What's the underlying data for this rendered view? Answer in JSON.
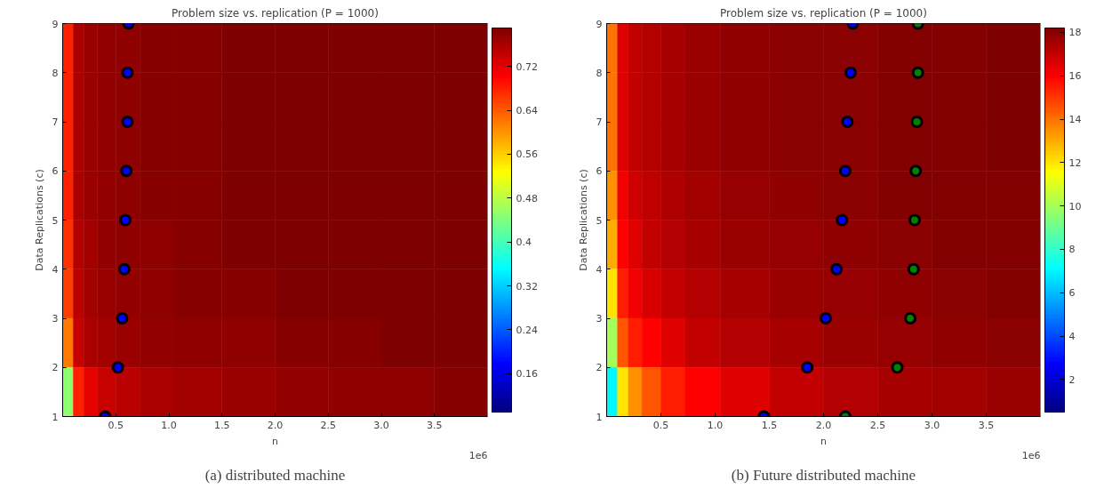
{
  "chart_data": [
    {
      "type": "heatmap",
      "title": "Problem size vs. replication (P = 1000)",
      "xlabel": "n",
      "ylabel": "Data Replications (c)",
      "x": [
        0.05,
        0.15,
        0.25,
        0.4,
        0.6,
        0.85,
        1.25,
        1.75,
        2.25,
        2.75,
        3.25,
        3.75
      ],
      "cells": [
        [
          0.68,
          0.76,
          0.77,
          0.775,
          0.78,
          0.785,
          0.785,
          0.79,
          0.79,
          0.79,
          0.79,
          0.79
        ],
        [
          0.68,
          0.76,
          0.77,
          0.775,
          0.78,
          0.785,
          0.785,
          0.79,
          0.79,
          0.79,
          0.79,
          0.79
        ],
        [
          0.68,
          0.76,
          0.77,
          0.775,
          0.78,
          0.785,
          0.785,
          0.79,
          0.79,
          0.79,
          0.79,
          0.79
        ],
        [
          0.68,
          0.76,
          0.77,
          0.775,
          0.78,
          0.785,
          0.785,
          0.79,
          0.79,
          0.79,
          0.79,
          0.79
        ],
        [
          0.67,
          0.755,
          0.765,
          0.775,
          0.78,
          0.78,
          0.785,
          0.79,
          0.79,
          0.79,
          0.79,
          0.79
        ],
        [
          0.66,
          0.75,
          0.765,
          0.77,
          0.775,
          0.78,
          0.785,
          0.785,
          0.79,
          0.79,
          0.79,
          0.79
        ],
        [
          0.62,
          0.74,
          0.76,
          0.765,
          0.77,
          0.775,
          0.78,
          0.78,
          0.785,
          0.785,
          0.79,
          0.79
        ],
        [
          0.45,
          0.68,
          0.72,
          0.74,
          0.75,
          0.76,
          0.765,
          0.77,
          0.775,
          0.78,
          0.78,
          0.785
        ]
      ],
      "clim": [
        0.09,
        0.79
      ],
      "cticks": [
        0.16,
        0.24,
        0.32,
        0.4,
        0.48,
        0.56,
        0.64,
        0.72
      ],
      "xlim": [
        0,
        4
      ],
      "xticks": [
        0.5,
        {
          "value": 1,
          "label": "1.0"
        },
        1.5,
        {
          "value": 2,
          "label": "2.0"
        },
        2.5,
        {
          "value": 3,
          "label": "3.0"
        },
        3.5
      ],
      "ylim": [
        1,
        9
      ],
      "yticks": [
        1,
        2,
        3,
        4,
        5,
        6,
        7,
        8,
        9
      ],
      "series": [
        {
          "type": "scatter",
          "color": "#0000ff",
          "x": [
            0.4,
            0.52,
            0.56,
            0.58,
            0.59,
            0.6,
            0.61,
            0.61,
            0.62
          ],
          "values": [
            1,
            2,
            3,
            4,
            5,
            6,
            7,
            8,
            9
          ]
        }
      ],
      "marker": "circle",
      "grid": false,
      "annotations": [
        "1e6",
        "(a) distributed machine"
      ]
    },
    {
      "type": "heatmap",
      "title": "Problem size vs. replication (P = 1000)",
      "xlabel": "n",
      "ylabel": "Data Replications (c)",
      "x": [
        0.05,
        0.15,
        0.25,
        0.4,
        0.6,
        0.85,
        1.25,
        1.75,
        2.25,
        2.75,
        3.25,
        3.75
      ],
      "cells": [
        [
          14,
          16.5,
          17,
          17.3,
          17.5,
          17.7,
          17.9,
          18,
          18,
          18.1,
          18.1,
          18.2
        ],
        [
          14,
          16.5,
          17,
          17.3,
          17.5,
          17.7,
          17.9,
          18,
          18,
          18.1,
          18.1,
          18.2
        ],
        [
          14,
          16.5,
          17,
          17.3,
          17.5,
          17.7,
          17.9,
          18,
          18,
          18.1,
          18.1,
          18.2
        ],
        [
          13.5,
          16.2,
          16.8,
          17.1,
          17.4,
          17.6,
          17.8,
          17.9,
          18,
          18.1,
          18.1,
          18.1
        ],
        [
          13,
          16,
          16.5,
          17,
          17.3,
          17.5,
          17.7,
          17.8,
          17.9,
          18,
          18.1,
          18.1
        ],
        [
          12,
          15.5,
          16.2,
          16.7,
          17,
          17.3,
          17.5,
          17.7,
          17.8,
          17.9,
          18,
          18.1
        ],
        [
          10,
          14.5,
          15.5,
          16,
          16.5,
          17,
          17.3,
          17.5,
          17.7,
          17.8,
          17.9,
          18
        ],
        [
          7,
          12,
          13.5,
          14.5,
          15.5,
          16,
          16.5,
          17,
          17.3,
          17.5,
          17.6,
          17.7
        ]
      ],
      "clim": [
        0.5,
        18.2
      ],
      "cticks": [
        2,
        4,
        6,
        8,
        10,
        12,
        14,
        16,
        18
      ],
      "xlim": [
        0,
        4
      ],
      "xticks": [
        0.5,
        {
          "value": 1,
          "label": "1.0"
        },
        1.5,
        {
          "value": 2,
          "label": "2.0"
        },
        2.5,
        {
          "value": 3,
          "label": "3.0"
        },
        3.5
      ],
      "ylim": [
        1,
        9
      ],
      "yticks": [
        1,
        2,
        3,
        4,
        5,
        6,
        7,
        8,
        9
      ],
      "series": [
        {
          "type": "scatter",
          "color": "#0000ff",
          "x": [
            1.45,
            1.85,
            2.02,
            2.12,
            2.17,
            2.2,
            2.22,
            2.25,
            2.27
          ],
          "values": [
            1,
            2,
            3,
            4,
            5,
            6,
            7,
            8,
            9
          ]
        },
        {
          "type": "scatter",
          "color": "#008000",
          "x": [
            2.2,
            2.68,
            2.8,
            2.83,
            2.84,
            2.85,
            2.86,
            2.87,
            2.87
          ],
          "values": [
            1,
            2,
            3,
            4,
            5,
            6,
            7,
            8,
            9
          ]
        }
      ],
      "marker": "circle",
      "grid": false,
      "annotations": [
        "1e6",
        "(b) Future distributed machine"
      ]
    }
  ]
}
